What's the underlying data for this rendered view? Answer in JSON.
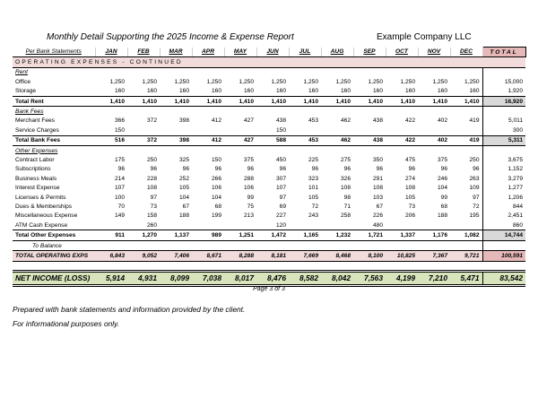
{
  "header": {
    "title": "Monthly Detail Supporting the 2025 Income & Expense Report",
    "company": "Example Company LLC"
  },
  "table": {
    "columns": [
      "Per Bank Statements",
      "JAN",
      "FEB",
      "MAR",
      "APR",
      "MAY",
      "JUN",
      "JUL",
      "AUG",
      "SEP",
      "OCT",
      "NOV",
      "DEC",
      "TOTAL"
    ],
    "section": "OPERATING EXPENSES - CONTINUED",
    "rows": [
      {
        "label": "Rent"
      },
      {
        "label": "Office",
        "cells": [
          "1,250",
          "1,250",
          "1,250",
          "1,250",
          "1,250",
          "1,250",
          "1,250",
          "1,250",
          "1,250",
          "1,250",
          "1,250",
          "1,250",
          "15,000"
        ]
      },
      {
        "label": "Storage",
        "cells": [
          "160",
          "160",
          "160",
          "160",
          "160",
          "160",
          "160",
          "160",
          "160",
          "160",
          "160",
          "160",
          "1,920"
        ]
      },
      {
        "label": "Total Rent",
        "cells": [
          "1,410",
          "1,410",
          "1,410",
          "1,410",
          "1,410",
          "1,410",
          "1,410",
          "1,410",
          "1,410",
          "1,410",
          "1,410",
          "1,410",
          "16,920"
        ]
      },
      {
        "label": "Bank Fees"
      },
      {
        "label": "Merchant Fees",
        "cells": [
          "366",
          "372",
          "398",
          "412",
          "427",
          "438",
          "453",
          "462",
          "438",
          "422",
          "402",
          "419",
          "5,011"
        ]
      },
      {
        "label": "Service Charges",
        "cells": [
          "150",
          null,
          null,
          null,
          null,
          "150",
          null,
          null,
          null,
          null,
          null,
          null,
          "300"
        ]
      },
      {
        "label": "Total Bank Fees",
        "cells": [
          "516",
          "372",
          "398",
          "412",
          "427",
          "588",
          "453",
          "462",
          "438",
          "422",
          "402",
          "419",
          "5,311"
        ]
      },
      {
        "label": "Other Expenses"
      },
      {
        "label": "Contract Labor",
        "cells": [
          "175",
          "250",
          "325",
          "150",
          "375",
          "450",
          "225",
          "275",
          "350",
          "475",
          "375",
          "250",
          "3,675"
        ]
      },
      {
        "label": "Subscriptions",
        "cells": [
          "96",
          "96",
          "96",
          "96",
          "96",
          "96",
          "96",
          "96",
          "96",
          "96",
          "96",
          "96",
          "1,152"
        ]
      },
      {
        "label": "Business Meals",
        "cells": [
          "214",
          "228",
          "252",
          "266",
          "288",
          "307",
          "323",
          "326",
          "291",
          "274",
          "246",
          "263",
          "3,279"
        ]
      },
      {
        "label": "Interest Expense",
        "cells": [
          "107",
          "108",
          "105",
          "106",
          "106",
          "107",
          "101",
          "108",
          "108",
          "108",
          "104",
          "109",
          "1,277"
        ]
      },
      {
        "label": "Licenses & Permits",
        "cells": [
          "100",
          "97",
          "104",
          "104",
          "99",
          "97",
          "105",
          "98",
          "103",
          "105",
          "99",
          "97",
          "1,206"
        ]
      },
      {
        "label": "Dues & Memberships",
        "cells": [
          "70",
          "73",
          "67",
          "68",
          "75",
          "69",
          "72",
          "71",
          "67",
          "73",
          "68",
          "72",
          "844"
        ]
      },
      {
        "label": "Miscellaneous Expense",
        "cells": [
          "149",
          "158",
          "188",
          "199",
          "213",
          "227",
          "243",
          "258",
          "226",
          "206",
          "188",
          "195",
          "2,451"
        ]
      },
      {
        "label": "ATM Cash Expense",
        "cells": [
          null,
          "260",
          null,
          null,
          null,
          "120",
          null,
          null,
          "480",
          null,
          null,
          null,
          "860"
        ]
      },
      {
        "label": "Total Other Expenses",
        "cells": [
          "911",
          "1,270",
          "1,137",
          "989",
          "1,251",
          "1,472",
          "1,165",
          "1,232",
          "1,721",
          "1,337",
          "1,176",
          "1,082",
          "14,744"
        ]
      },
      {
        "label": "To Balance"
      },
      {
        "label": "TOTAL OPERATING EXPS",
        "cells": [
          "6,843",
          "9,052",
          "7,406",
          "8,671",
          "8,288",
          "8,181",
          "7,669",
          "8,468",
          "8,100",
          "10,825",
          "7,367",
          "9,721",
          "100,591"
        ]
      },
      {
        "label": "NET INCOME (LOSS)",
        "cells": [
          "5,914",
          "4,931",
          "8,099",
          "7,038",
          "8,017",
          "8,476",
          "8,582",
          "8,042",
          "7,563",
          "4,199",
          "7,210",
          "5,471",
          "83,542"
        ]
      }
    ],
    "footer": "Page 3 of 3"
  },
  "notes": [
    "Prepared with bank statements and information provided by the client.",
    "For informational purposes only."
  ]
}
